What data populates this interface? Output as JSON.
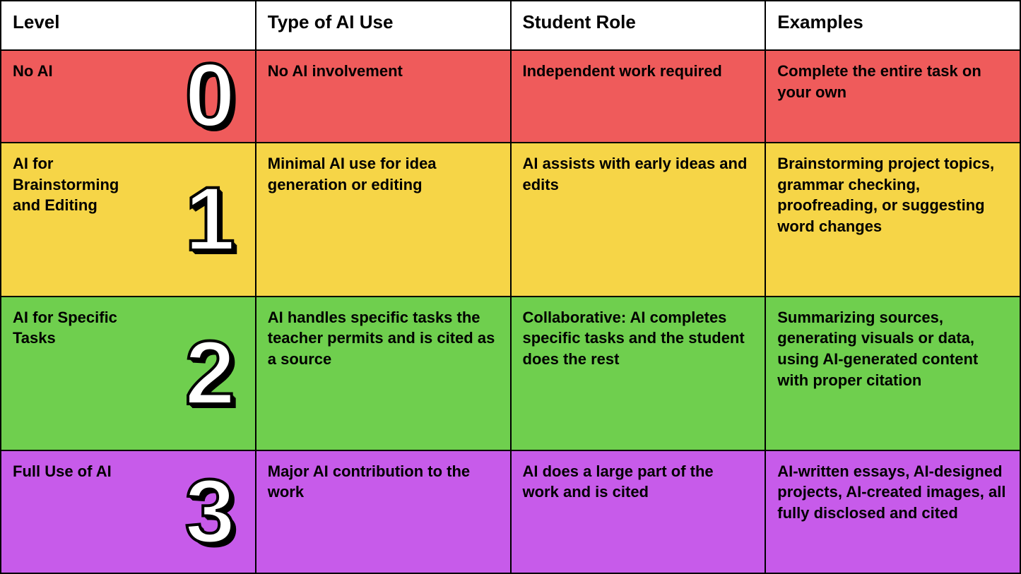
{
  "headers": {
    "level": "Level",
    "type": "Type of AI Use",
    "role": "Student Role",
    "examples": "Examples"
  },
  "rows": [
    {
      "number": "0",
      "bg_color": "#ef5b5b",
      "level_label": "No AI",
      "type": "No AI involvement",
      "role": "Independent work required",
      "examples": "Complete the entire task on your own"
    },
    {
      "number": "1",
      "bg_color": "#f6d547",
      "level_label": "AI for Brainstorming and Editing",
      "type": "Minimal AI use for idea generation or editing",
      "role": "AI assists with early ideas and edits",
      "examples": "Brainstorming project topics, grammar checking, proofreading, or suggesting word changes"
    },
    {
      "number": "2",
      "bg_color": "#6fcf4e",
      "level_label": "AI for Specific Tasks",
      "type": "AI handles specific tasks the teacher permits and is cited as a source",
      "role": "Collaborative: AI completes specific tasks and the student does the rest",
      "examples": "Summarizing sources, generating visuals or data, using AI-generated content with proper citation"
    },
    {
      "number": "3",
      "bg_color": "#c75bea",
      "level_label": "Full Use of AI",
      "type": "Major AI contribution to the work",
      "role": "AI does a large part of the work and is cited",
      "examples": "AI-written essays, AI-designed projects, AI-created images, all fully disclosed and cited"
    }
  ],
  "style": {
    "border_color": "#000000",
    "text_color": "#000000",
    "number_fill": "#ffffff",
    "number_stroke": "#000000",
    "header_bg": "#ffffff",
    "header_fontsize": 26,
    "cell_fontsize": 22,
    "number_fontsize": 128
  }
}
